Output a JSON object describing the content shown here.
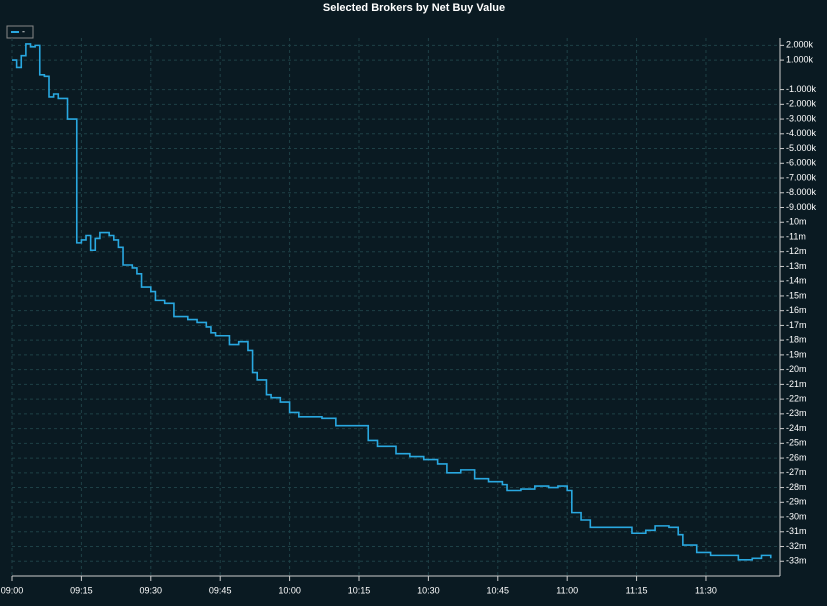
{
  "chart_data": {
    "type": "step-line",
    "title": "Selected Brokers by Net Buy Value",
    "series": [
      {
        "name": "-",
        "color": "#29a8e0",
        "x": [
          "09:00",
          "09:01",
          "09:02",
          "09:03",
          "09:04",
          "09:05",
          "09:06",
          "09:07",
          "09:08",
          "09:09",
          "09:10",
          "09:12",
          "09:14",
          "09:15",
          "09:16",
          "09:17",
          "09:18",
          "09:19",
          "09:21",
          "09:22",
          "09:23",
          "09:24",
          "09:26",
          "09:27",
          "09:28",
          "09:30",
          "09:31",
          "09:33",
          "09:35",
          "09:38",
          "09:40",
          "09:42",
          "09:43",
          "09:44",
          "09:47",
          "09:49",
          "09:51",
          "09:52",
          "09:53",
          "09:55",
          "09:56",
          "09:58",
          "10:00",
          "10:02",
          "10:07",
          "10:10",
          "10:17",
          "10:19",
          "10:23",
          "10:26",
          "10:29",
          "10:32",
          "10:34",
          "10:37",
          "10:40",
          "10:43",
          "10:46",
          "10:47",
          "10:50",
          "10:53",
          "10:56",
          "10:58",
          "11:00",
          "11:01",
          "11:03",
          "11:05",
          "11:12",
          "11:14",
          "11:17",
          "11:19",
          "11:22",
          "11:24",
          "11:25",
          "11:28",
          "11:31",
          "11:37",
          "11:40",
          "11:42",
          "11:44"
        ],
        "values": [
          1.0,
          0.5,
          1.3,
          2.1,
          1.9,
          2.0,
          0,
          -0.1,
          -1.5,
          -1.3,
          -1.6,
          -3.0,
          -11.4,
          -11.2,
          -10.9,
          -11.9,
          -11.1,
          -10.7,
          -10.9,
          -11.2,
          -11.7,
          -12.9,
          -13.1,
          -13.5,
          -14.4,
          -14.7,
          -15.3,
          -15.5,
          -16.4,
          -16.6,
          -16.8,
          -17.1,
          -17.5,
          -17.7,
          -18.3,
          -18.1,
          -18.7,
          -20.2,
          -20.7,
          -21.7,
          -21.9,
          -22.2,
          -22.9,
          -23.2,
          -23.3,
          -23.8,
          -24.8,
          -25.2,
          -25.7,
          -25.9,
          -26.1,
          -26.4,
          -27.0,
          -26.8,
          -27.4,
          -27.6,
          -27.8,
          -28.2,
          -28.1,
          -27.9,
          -28.0,
          -27.9,
          -28.2,
          -29.7,
          -30.2,
          -30.7,
          -30.7,
          -31.1,
          -30.9,
          -30.6,
          -30.7,
          -31.2,
          -31.9,
          -32.4,
          -32.6,
          -32.9,
          -32.8,
          -32.6,
          -32.8
        ]
      }
    ],
    "xlim": [
      "09:00",
      "11:46"
    ],
    "xticks": [
      "09:00",
      "09:15",
      "09:30",
      "09:45",
      "10:00",
      "10:15",
      "10:30",
      "10:45",
      "11:00",
      "11:15",
      "11:30"
    ],
    "ylim": [
      -34,
      2.5
    ],
    "yticks": [
      {
        "value": 2,
        "label": "2.000k"
      },
      {
        "value": 1,
        "label": "1.000k"
      },
      {
        "value": -1,
        "label": "-1.000k"
      },
      {
        "value": -2,
        "label": "-2.000k"
      },
      {
        "value": -3,
        "label": "-3.000k"
      },
      {
        "value": -4,
        "label": "-4.000k"
      },
      {
        "value": -5,
        "label": "-5.000k"
      },
      {
        "value": -6,
        "label": "-6.000k"
      },
      {
        "value": -7,
        "label": "-7.000k"
      },
      {
        "value": -8,
        "label": "-8.000k"
      },
      {
        "value": -9,
        "label": "-9.000k"
      },
      {
        "value": -10,
        "label": "-10m"
      },
      {
        "value": -11,
        "label": "-11m"
      },
      {
        "value": -12,
        "label": "-12m"
      },
      {
        "value": -13,
        "label": "-13m"
      },
      {
        "value": -14,
        "label": "-14m"
      },
      {
        "value": -15,
        "label": "-15m"
      },
      {
        "value": -16,
        "label": "-16m"
      },
      {
        "value": -17,
        "label": "-17m"
      },
      {
        "value": -18,
        "label": "-18m"
      },
      {
        "value": -19,
        "label": "-19m"
      },
      {
        "value": -20,
        "label": "-20m"
      },
      {
        "value": -21,
        "label": "-21m"
      },
      {
        "value": -22,
        "label": "-22m"
      },
      {
        "value": -23,
        "label": "-23m"
      },
      {
        "value": -24,
        "label": "-24m"
      },
      {
        "value": -25,
        "label": "-25m"
      },
      {
        "value": -26,
        "label": "-26m"
      },
      {
        "value": -27,
        "label": "-27m"
      },
      {
        "value": -28,
        "label": "-28m"
      },
      {
        "value": -29,
        "label": "-29m"
      },
      {
        "value": -30,
        "label": "-30m"
      },
      {
        "value": -31,
        "label": "-31m"
      },
      {
        "value": -32,
        "label": "-32m"
      },
      {
        "value": -33,
        "label": "-33m"
      }
    ],
    "grid": true
  }
}
